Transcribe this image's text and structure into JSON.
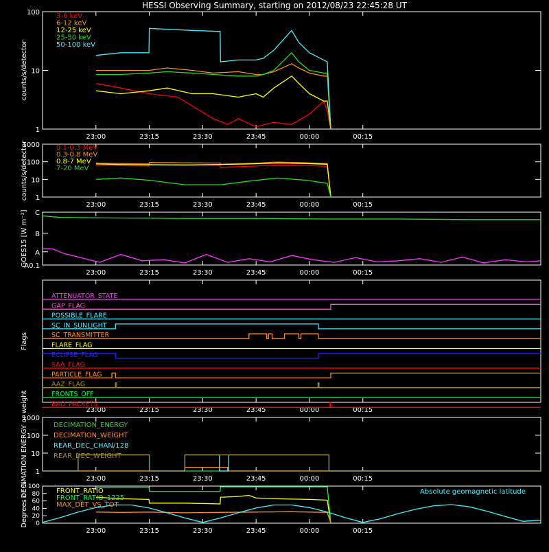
{
  "title": "HESSI Observing Summary, starting on 2012/08/23 22:45:28 UT",
  "x_ticks": [
    "23:00",
    "23:15",
    "23:30",
    "23:45",
    "00:00",
    "00:15"
  ],
  "x_tick_minutes": [
    15,
    30,
    45,
    60,
    75,
    90
  ],
  "colors": {
    "red": "#ff0000",
    "orange": "#ff8c1a",
    "yellow": "#ffff00",
    "green": "#22dd22",
    "cyan": "#44eeff",
    "magenta": "#ff33ff",
    "blue": "#2222ff",
    "olive": "#a08a3c",
    "lime": "#00ff44",
    "pink": "#e060c0",
    "axis": "#ffffff"
  },
  "chart_data": [
    {
      "id": "lowE",
      "type": "line",
      "ylabel": "counts/s/detector",
      "yscale": "log",
      "ylim": [
        1,
        100
      ],
      "ytick_labels": [
        "1",
        "10",
        "100"
      ],
      "xlim_minutes": [
        0,
        140
      ],
      "series": [
        {
          "name": "3-6 keV",
          "color": "red",
          "x": [
            15,
            22,
            30,
            38,
            42,
            48,
            52,
            55,
            60,
            65,
            70,
            75,
            79,
            80,
            81
          ],
          "values": [
            6,
            5,
            4,
            3.5,
            2.5,
            1.5,
            1.2,
            1.5,
            1.1,
            1.3,
            1.2,
            1.8,
            3,
            2,
            1
          ]
        },
        {
          "name": "6-12 keV",
          "color": "orange",
          "x": [
            15,
            22,
            30,
            35,
            42,
            48,
            55,
            60,
            62,
            65,
            70,
            72,
            75,
            79,
            80,
            81
          ],
          "values": [
            10,
            10,
            10,
            11,
            10,
            9,
            9.5,
            8.5,
            8.5,
            9.5,
            13,
            11,
            9,
            8,
            8,
            1
          ]
        },
        {
          "name": "12-25 keV",
          "color": "yellow",
          "x": [
            15,
            22,
            30,
            35,
            42,
            48,
            55,
            60,
            62,
            65,
            70,
            72,
            75,
            79,
            80,
            81
          ],
          "values": [
            4.5,
            4,
            4.5,
            5,
            4,
            4,
            3.5,
            4,
            3.5,
            5,
            8,
            6,
            4,
            3,
            3,
            1
          ]
        },
        {
          "name": "25-50 keV",
          "color": "green",
          "x": [
            15,
            22,
            30,
            35,
            42,
            48,
            55,
            60,
            62,
            65,
            70,
            72,
            75,
            79,
            80,
            81
          ],
          "values": [
            8.5,
            8.5,
            9,
            9.5,
            9,
            8.5,
            8,
            8,
            8.5,
            10,
            20,
            14,
            10,
            9,
            9,
            1
          ]
        },
        {
          "name": "50-100 keV",
          "color": "cyan",
          "x": [
            15,
            22,
            29.9,
            30,
            42,
            49.9,
            50,
            55,
            60,
            62,
            65,
            70,
            72,
            75,
            79,
            80,
            81
          ],
          "values": [
            18,
            20,
            20,
            52,
            48,
            46,
            14,
            15,
            15,
            16,
            22,
            48,
            30,
            20,
            15,
            14,
            1
          ]
        }
      ]
    },
    {
      "id": "highE",
      "type": "line",
      "ylabel": "counts/s/detector",
      "yscale": "log",
      "ylim": [
        1,
        1000
      ],
      "ytick_labels": [
        "1",
        "10",
        "100",
        "1000"
      ],
      "xlim_minutes": [
        0,
        140
      ],
      "series": [
        {
          "name": "0.1-0.3 MeV",
          "color": "red",
          "x": [
            15,
            22,
            29.9,
            30,
            40,
            49.9,
            50,
            58,
            66,
            74,
            80,
            81
          ],
          "values": [
            62,
            60,
            58,
            70,
            68,
            66,
            48,
            55,
            66,
            62,
            55,
            1
          ]
        },
        {
          "name": "0.3-0.8 MeV",
          "color": "orange",
          "x": [
            15,
            22,
            29.9,
            30,
            40,
            49.9,
            50,
            58,
            66,
            74,
            80,
            81
          ],
          "values": [
            85,
            80,
            75,
            90,
            88,
            85,
            72,
            80,
            95,
            88,
            78,
            1
          ]
        },
        {
          "name": "0.8-7 MeV",
          "color": "yellow",
          "x": [
            15,
            22,
            30,
            40,
            50,
            58,
            66,
            74,
            80,
            81
          ],
          "values": [
            75,
            70,
            68,
            66,
            70,
            75,
            85,
            80,
            72,
            1
          ]
        },
        {
          "name": "7-20 MeV",
          "color": "green",
          "x": [
            15,
            22,
            30,
            40,
            50,
            58,
            66,
            74,
            80,
            81
          ],
          "values": [
            10,
            12,
            9,
            5,
            5,
            8,
            12,
            9,
            6,
            1
          ]
        }
      ]
    },
    {
      "id": "goes",
      "type": "line",
      "ylabel": "GOES15 [W m⁻²]",
      "yscale": "class",
      "ytick_labels": [
        "A0.1",
        "A",
        "B",
        "C"
      ],
      "xlim_minutes": [
        0,
        140
      ],
      "series": [
        {
          "name": "",
          "color": "green",
          "x": [
            0,
            5,
            20,
            40,
            60,
            80,
            100,
            120,
            140
          ],
          "values": [
            0.93,
            0.9,
            0.89,
            0.88,
            0.88,
            0.87,
            0.87,
            0.86,
            0.86
          ]
        },
        {
          "name": "",
          "color": "magenta",
          "x": [
            0,
            3,
            6,
            10,
            16,
            22,
            28,
            34,
            40,
            46,
            52,
            58,
            64,
            70,
            76,
            82,
            88,
            94,
            100,
            106,
            112,
            118,
            124,
            130,
            136,
            140
          ],
          "values": [
            0.32,
            0.3,
            0.22,
            0.15,
            0.05,
            0.2,
            0.08,
            0.1,
            0.04,
            0.2,
            0.05,
            0.12,
            0.06,
            0.18,
            0.1,
            0.05,
            0.14,
            0.06,
            0.08,
            0.12,
            0.05,
            0.15,
            0.04,
            0.1,
            0.06,
            0.08
          ]
        }
      ]
    },
    {
      "id": "flags",
      "type": "line",
      "ylabel": "Flags",
      "xlim_minutes": [
        0,
        140
      ],
      "series": [
        {
          "name": "ATTENUATOR_STATE",
          "color": "magenta",
          "steps": [
            [
              0,
              140,
              0
            ]
          ]
        },
        {
          "name": "GAP_FLAG",
          "color": "pink",
          "steps": [
            [
              0,
              81,
              0
            ],
            [
              81,
              140,
              1
            ]
          ]
        },
        {
          "name": "POSSIBLE_FLARE",
          "color": "cyan",
          "steps": [
            [
              0,
              140,
              0
            ]
          ]
        },
        {
          "name": "SC_IN_SUNLIGHT",
          "color": "cyan",
          "steps": [
            [
              0,
              20.5,
              0
            ],
            [
              20.5,
              77.5,
              1
            ],
            [
              77.5,
              140,
              0
            ]
          ]
        },
        {
          "name": "SC_TRANSMITTER",
          "color": "orange",
          "steps": [
            [
              0,
              58,
              0
            ],
            [
              58,
              63,
              1
            ],
            [
              63,
              63.5,
              0
            ],
            [
              63.5,
              64.5,
              1
            ],
            [
              64.5,
              68,
              0
            ],
            [
              68,
              72,
              1
            ],
            [
              72,
              72.6,
              0
            ],
            [
              72.6,
              77.5,
              1
            ],
            [
              77.5,
              140,
              0
            ]
          ]
        },
        {
          "name": "FLARE_FLAG",
          "color": "yellow",
          "steps": [
            [
              0,
              140,
              0
            ]
          ]
        },
        {
          "name": "ECLIPSE_FLAG",
          "color": "blue",
          "steps": [
            [
              0,
              20.5,
              1
            ],
            [
              20.5,
              77.5,
              0
            ],
            [
              77.5,
              140,
              1
            ]
          ]
        },
        {
          "name": "SAA_FLAG",
          "color": "red",
          "steps": [
            [
              0,
              140,
              0
            ]
          ]
        },
        {
          "name": "PARTICLE_FLAG",
          "color": "orange",
          "steps": [
            [
              0,
              19.5,
              0
            ],
            [
              19.5,
              20.5,
              1
            ],
            [
              20.5,
              81,
              0
            ],
            [
              81,
              140,
              1
            ]
          ]
        },
        {
          "name": "AAZ_FLAG",
          "color": "olive",
          "steps": [
            [
              0,
              20.5,
              0
            ],
            [
              20.5,
              20.8,
              1
            ],
            [
              20.8,
              77.4,
              0
            ],
            [
              77.4,
              77.7,
              1
            ],
            [
              77.7,
              140,
              0
            ]
          ]
        },
        {
          "name": "FRONTS_OFF",
          "color": "lime",
          "steps": [
            [
              0,
              140,
              0
            ]
          ]
        },
        {
          "name": "BAD_PACKETS",
          "color": "red",
          "steps": [
            [
              0,
              80.8,
              0
            ],
            [
              80.8,
              81,
              1
            ],
            [
              81,
              140,
              0
            ]
          ]
        }
      ]
    },
    {
      "id": "decim",
      "type": "line",
      "ylabel": "DECIMATION ENERGY or weight",
      "yscale": "log",
      "ylim": [
        1,
        1000
      ],
      "ytick_labels": [
        "1",
        "10",
        "100",
        "1000"
      ],
      "xlim_minutes": [
        0,
        140
      ],
      "series": [
        {
          "name": "DECIMATION_ENERGY",
          "color": "green",
          "steps": [
            [
              0,
              140,
              1
            ]
          ]
        },
        {
          "name": "DECIMATION_WEIGHT",
          "color": "orange",
          "steps": [
            [
              0,
              40,
              1
            ],
            [
              40,
              52,
              1.6
            ],
            [
              52,
              140,
              1
            ]
          ]
        },
        {
          "name": "REAR_DEC_CHAN/128",
          "color": "cyan",
          "steps": [
            [
              0,
              10,
              1
            ],
            [
              10,
              30,
              8
            ],
            [
              30,
              40,
              1
            ],
            [
              40,
              49.7,
              8
            ],
            [
              49.7,
              52.3,
              1
            ],
            [
              52.3,
              80.5,
              8
            ],
            [
              80.5,
              140,
              1
            ]
          ]
        },
        {
          "name": "REAR_DEC_WEIGHT",
          "color": "olive",
          "steps": [
            [
              0,
              10,
              1
            ],
            [
              10,
              30,
              8
            ],
            [
              30,
              40,
              1
            ],
            [
              40,
              52.3,
              8
            ],
            [
              52.3,
              80.5,
              8
            ],
            [
              80.5,
              140,
              1
            ]
          ]
        }
      ]
    },
    {
      "id": "ratio",
      "type": "line",
      "ylabel": "Degrees or %",
      "ylim": [
        0,
        100
      ],
      "ytick_labels": [
        "0",
        "20",
        "40",
        "60",
        "80",
        "100"
      ],
      "xlim_minutes": [
        0,
        140
      ],
      "annotation": "Absolute geomagnetic latitude",
      "series": [
        {
          "name": "FRONT_RATIO",
          "color": "yellow",
          "x": [
            15,
            22,
            29.9,
            30,
            40,
            49.9,
            50,
            55,
            58,
            60,
            65,
            70,
            75,
            80,
            81
          ],
          "values": [
            70,
            66,
            64,
            54,
            54,
            52,
            70,
            72,
            75,
            68,
            66,
            65,
            64,
            62,
            0
          ]
        },
        {
          "name": "FRONT_RATIO_1225",
          "color": "lime",
          "x": [
            15,
            22,
            29.9,
            30,
            40,
            49.9,
            50,
            60,
            70,
            80,
            81
          ],
          "values": [
            97,
            97,
            97,
            86,
            86,
            86,
            98,
            98,
            98,
            98,
            0
          ]
        },
        {
          "name": "MAX_DET_VS_TOT",
          "color": "orange",
          "x": [
            15,
            22,
            30,
            40,
            50,
            60,
            70,
            80,
            81
          ],
          "values": [
            30,
            29,
            30,
            28,
            29,
            30,
            31,
            29,
            0
          ]
        },
        {
          "name": "",
          "color": "cyan",
          "x": [
            0,
            5,
            10,
            15,
            20,
            25,
            30,
            35,
            40,
            45,
            50,
            55,
            60,
            65,
            70,
            75,
            80,
            85,
            90,
            95,
            100,
            105,
            110,
            115,
            120,
            125,
            130,
            135,
            140
          ],
          "values": [
            2,
            15,
            30,
            42,
            49,
            49,
            41,
            28,
            14,
            2,
            14,
            28,
            41,
            49,
            49,
            42,
            30,
            15,
            2,
            12,
            26,
            38,
            47,
            50,
            44,
            32,
            18,
            5,
            8
          ]
        }
      ]
    }
  ]
}
